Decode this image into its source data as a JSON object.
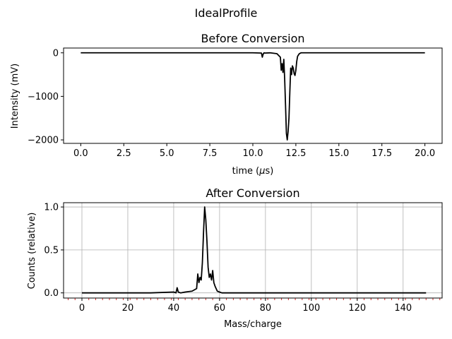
{
  "figure": {
    "suptitle": "IdealProfile"
  },
  "chart_data": [
    {
      "type": "line",
      "title": "Before Conversion",
      "xlabel": "time (μs)",
      "ylabel": "Intensity (mV)",
      "xlim": [
        -1.0,
        21.0
      ],
      "ylim": [
        -2080,
        110
      ],
      "xticks": [
        0.0,
        2.5,
        5.0,
        7.5,
        10.0,
        12.5,
        15.0,
        17.5,
        20.0
      ],
      "xtick_labels": [
        "0.0",
        "2.5",
        "5.0",
        "7.5",
        "10.0",
        "12.5",
        "15.0",
        "17.5",
        "20.0"
      ],
      "yticks": [
        0,
        -1000,
        -2000
      ],
      "ytick_labels": [
        "0",
        "−1000",
        "−2000"
      ],
      "grid": false,
      "series": [
        {
          "color": "#000000",
          "x": [
            0.0,
            2.0,
            4.0,
            6.0,
            8.0,
            10.0,
            10.5,
            10.55,
            10.6,
            10.65,
            10.7,
            11.0,
            11.4,
            11.6,
            11.65,
            11.7,
            11.75,
            11.8,
            11.85,
            11.9,
            11.95,
            12.0,
            12.05,
            12.1,
            12.15,
            12.2,
            12.25,
            12.3,
            12.35,
            12.4,
            12.45,
            12.5,
            12.55,
            12.6,
            12.7,
            12.8,
            13.0,
            14.0,
            16.0,
            18.0,
            20.0
          ],
          "y": [
            0,
            0,
            0,
            0,
            0,
            0,
            -5,
            -100,
            -30,
            0,
            -5,
            0,
            -20,
            -100,
            -400,
            -250,
            -450,
            -150,
            -600,
            -1200,
            -1850,
            -2000,
            -1800,
            -1500,
            -900,
            -350,
            -500,
            -300,
            -350,
            -480,
            -520,
            -400,
            -200,
            -80,
            -20,
            0,
            0,
            0,
            0,
            0,
            0
          ]
        }
      ]
    },
    {
      "type": "line",
      "title": "After Conversion",
      "xlabel": "Mass/charge",
      "ylabel": "Counts (relative)",
      "xlim": [
        -8,
        157
      ],
      "ylim": [
        -0.06,
        1.05
      ],
      "xticks": [
        0,
        20,
        40,
        60,
        80,
        100,
        120,
        140
      ],
      "xtick_labels": [
        "0",
        "20",
        "40",
        "60",
        "80",
        "100",
        "120",
        "140"
      ],
      "yticks": [
        0.0,
        0.5,
        1.0
      ],
      "ytick_labels": [
        "0.0",
        "0.5",
        "1.0"
      ],
      "grid": true,
      "minor_tick_color": "#d62728",
      "series": [
        {
          "color": "#000000",
          "x": [
            0,
            10,
            20,
            30,
            40,
            41,
            41.5,
            42,
            43,
            45,
            48,
            50,
            50.5,
            51,
            51.5,
            52,
            52.5,
            53,
            53.5,
            54,
            54.5,
            55,
            55.5,
            56,
            56.5,
            57,
            57.5,
            58,
            58.5,
            59,
            60,
            61,
            62,
            70,
            80,
            100,
            120,
            140,
            150
          ],
          "y": [
            0,
            0,
            0,
            0,
            0.01,
            0.0,
            0.06,
            0.01,
            0.0,
            0.01,
            0.02,
            0.05,
            0.22,
            0.12,
            0.18,
            0.15,
            0.35,
            0.7,
            1.0,
            0.85,
            0.6,
            0.3,
            0.18,
            0.22,
            0.15,
            0.26,
            0.12,
            0.08,
            0.05,
            0.02,
            0.01,
            0.0,
            0.0,
            0.0,
            0.0,
            0.0,
            0.0,
            0.0,
            0.0
          ]
        }
      ]
    }
  ]
}
